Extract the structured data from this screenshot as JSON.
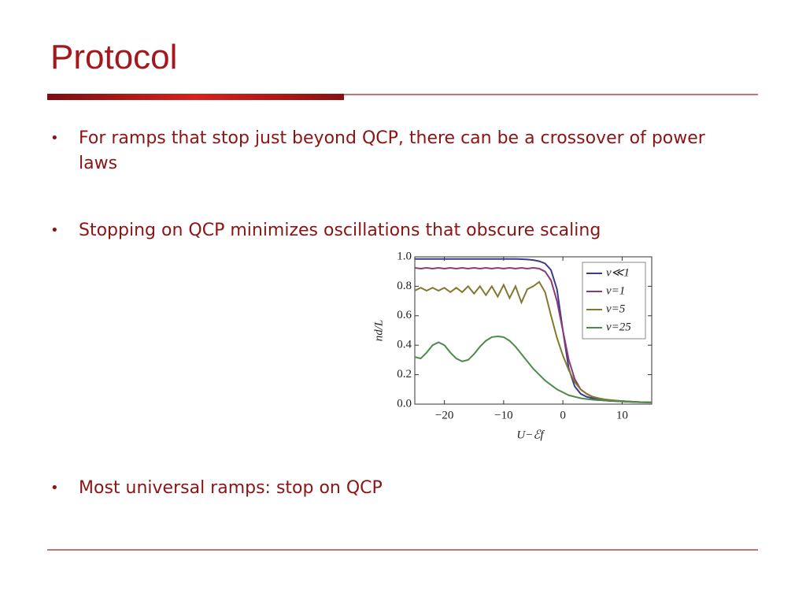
{
  "title": "Protocol",
  "bullets": [
    "For ramps that stop just beyond QCP, there can be a crossover of power laws",
    "Stopping on QCP minimizes oscillations that obscure scaling",
    "Most universal ramps: stop on QCP"
  ],
  "chart_data": {
    "type": "line",
    "x_label": "U−ℰf",
    "y_label": "nd/L",
    "x": [
      -25,
      -24,
      -23,
      -22,
      -21,
      -20,
      -19,
      -18,
      -17,
      -16,
      -15,
      -14,
      -13,
      -12,
      -11,
      -10,
      -9,
      -8,
      -7,
      -6,
      -5,
      -4,
      -3,
      -2,
      -1,
      0,
      1,
      2,
      3,
      4,
      5,
      6,
      7,
      8,
      9,
      10,
      11,
      12,
      13,
      14,
      15
    ],
    "series": [
      {
        "name": "v≪1",
        "color": "#3a3d8c",
        "values": [
          0.985,
          0.985,
          0.985,
          0.985,
          0.985,
          0.985,
          0.985,
          0.985,
          0.985,
          0.985,
          0.985,
          0.985,
          0.985,
          0.985,
          0.985,
          0.985,
          0.985,
          0.985,
          0.984,
          0.982,
          0.978,
          0.97,
          0.955,
          0.91,
          0.78,
          0.5,
          0.24,
          0.12,
          0.07,
          0.05,
          0.04,
          0.03,
          0.025,
          0.022,
          0.02,
          0.018,
          0.016,
          0.014,
          0.013,
          0.012,
          0.011
        ]
      },
      {
        "name": "v=1",
        "color": "#8a3a78",
        "values": [
          0.925,
          0.92,
          0.925,
          0.92,
          0.925,
          0.92,
          0.925,
          0.92,
          0.925,
          0.92,
          0.925,
          0.92,
          0.925,
          0.92,
          0.925,
          0.92,
          0.925,
          0.92,
          0.925,
          0.92,
          0.925,
          0.92,
          0.9,
          0.84,
          0.7,
          0.5,
          0.3,
          0.17,
          0.1,
          0.07,
          0.05,
          0.04,
          0.03,
          0.026,
          0.023,
          0.02,
          0.018,
          0.016,
          0.014,
          0.013,
          0.012
        ]
      },
      {
        "name": "v=5",
        "color": "#7f7a30",
        "values": [
          0.77,
          0.79,
          0.77,
          0.79,
          0.77,
          0.79,
          0.76,
          0.79,
          0.76,
          0.8,
          0.75,
          0.8,
          0.74,
          0.8,
          0.73,
          0.81,
          0.72,
          0.8,
          0.69,
          0.78,
          0.8,
          0.83,
          0.76,
          0.6,
          0.45,
          0.33,
          0.23,
          0.15,
          0.1,
          0.07,
          0.05,
          0.04,
          0.033,
          0.028,
          0.024,
          0.021,
          0.018,
          0.016,
          0.014,
          0.013,
          0.012
        ]
      },
      {
        "name": "v=25",
        "color": "#4e8a4e",
        "values": [
          0.32,
          0.31,
          0.35,
          0.4,
          0.42,
          0.4,
          0.35,
          0.31,
          0.29,
          0.3,
          0.34,
          0.39,
          0.43,
          0.455,
          0.46,
          0.455,
          0.43,
          0.39,
          0.34,
          0.29,
          0.24,
          0.2,
          0.16,
          0.13,
          0.1,
          0.08,
          0.06,
          0.05,
          0.04,
          0.035,
          0.03,
          0.027,
          0.025,
          0.022,
          0.02,
          0.018,
          0.016,
          0.015,
          0.013,
          0.012,
          0.011
        ]
      }
    ],
    "xlim": [
      -25,
      15
    ],
    "ylim": [
      0,
      1
    ],
    "xticks": [
      {
        "value": -20,
        "label": "−20"
      },
      {
        "value": -10,
        "label": "−10"
      },
      0,
      10
    ],
    "yticks": [
      {
        "value": 0,
        "label": "0.0"
      },
      {
        "value": 0.2,
        "label": "0.2"
      },
      {
        "value": 0.4,
        "label": "0.4"
      },
      {
        "value": 0.6,
        "label": "0.6"
      },
      {
        "value": 0.8,
        "label": "0.8"
      },
      {
        "value": 1,
        "label": "1.0"
      }
    ],
    "legend": "upper-right"
  }
}
